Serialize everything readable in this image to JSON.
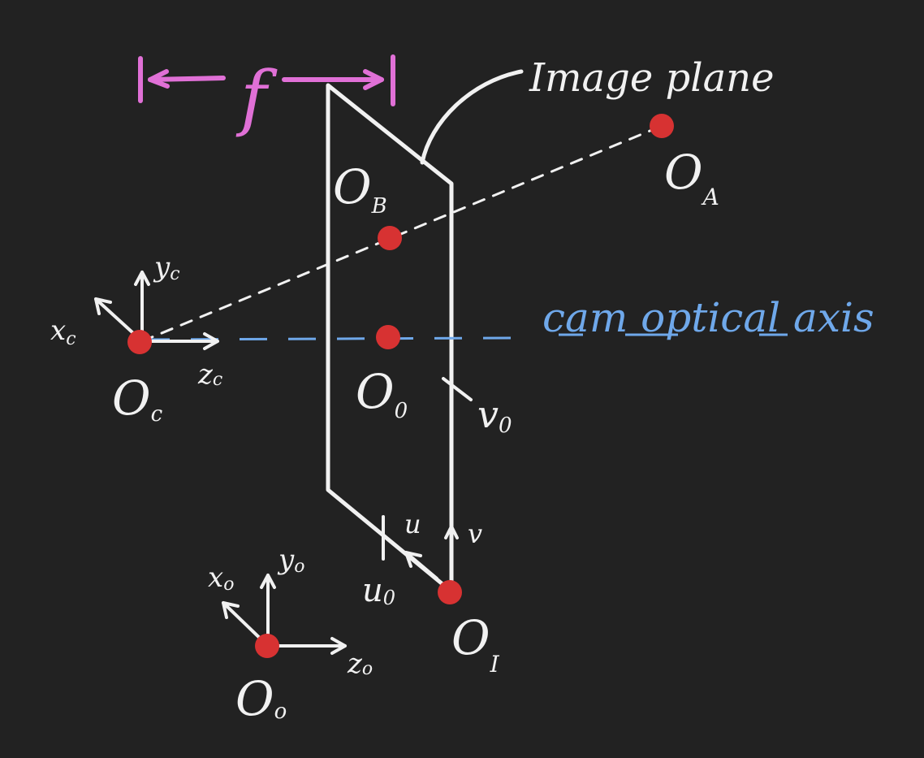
{
  "labels": {
    "focal_length": "f",
    "image_plane": "Image plane",
    "optical_axis": "cam optical axis",
    "O_A": "O",
    "O_A_sub": "A",
    "O_B": "O",
    "O_B_sub": "B",
    "O_0": "O",
    "O_0_sub": "0",
    "O_c": "O",
    "O_c_sub": "c",
    "O_I": "O",
    "O_I_sub": "I",
    "O_o": "O",
    "O_o_sub": "o",
    "x_c": "x",
    "x_c_sub": "c",
    "y_c": "y",
    "y_c_sub": "c",
    "z_c": "z",
    "z_c_sub": "c",
    "x_o": "x",
    "x_o_sub": "o",
    "y_o": "y",
    "y_o_sub": "o",
    "z_o": "z",
    "z_o_sub": "o",
    "u": "u",
    "v": "v",
    "u_0": "u",
    "u_0_sub": "0",
    "v_0": "v",
    "v_0_sub": "0"
  },
  "colors": {
    "background": "#222222",
    "ink": "#f1f1f1",
    "point": "#d73232",
    "focal": "#e070d6",
    "axis_blue": "#6fa8ea"
  }
}
